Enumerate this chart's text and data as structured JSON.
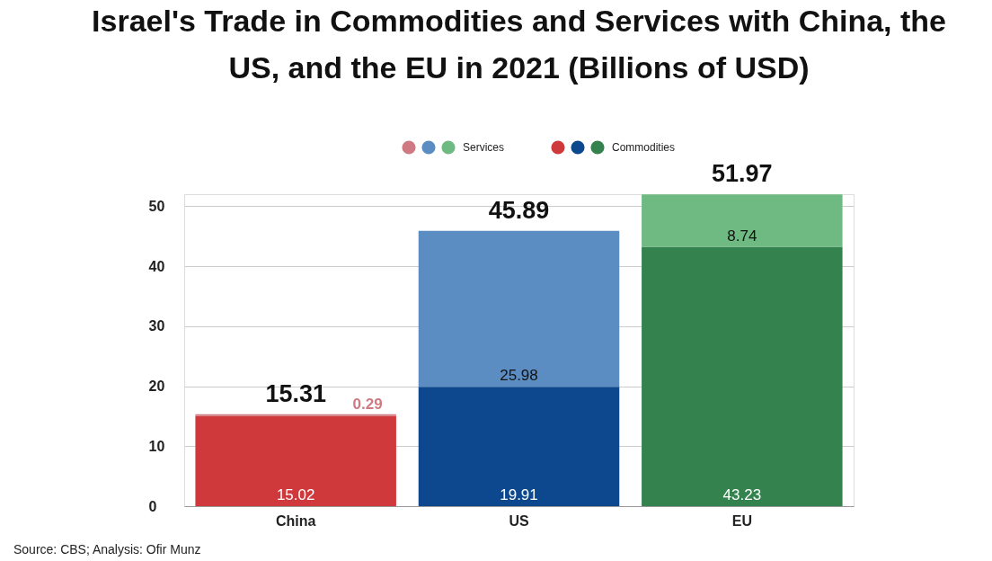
{
  "chart_data": {
    "type": "bar",
    "title": "Israel's Trade in Commodities and Services with China, the US, and the EU in 2021 (Billions of USD)",
    "categories": [
      "China",
      "US",
      "EU"
    ],
    "stacked": true,
    "series": [
      {
        "name": "Commodities",
        "colors": [
          "#d0393b",
          "#0d478d",
          "#34824d"
        ],
        "values": [
          15.02,
          19.91,
          43.23
        ]
      },
      {
        "name": "Services",
        "colors": [
          "#cf7a82",
          "#5c8dc2",
          "#6fba82"
        ],
        "values": [
          0.29,
          25.98,
          8.74
        ]
      }
    ],
    "totals": [
      "15.31",
      "45.89",
      "51.97"
    ],
    "data_labels": true,
    "ylim": [
      0,
      52
    ],
    "yticks": [
      0,
      10,
      20,
      30,
      40,
      50
    ],
    "grid": "y",
    "legend": "top",
    "annotations": [
      "Source: CBS; Analysis: Ofir Munz"
    ]
  }
}
